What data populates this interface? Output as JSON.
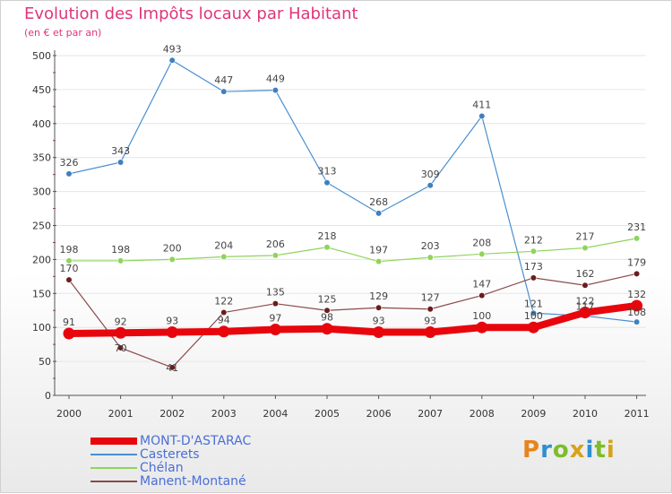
{
  "header": {
    "title": "Evolution des Impôts locaux par Habitant",
    "subtitle": "(en € et par an)"
  },
  "brand": {
    "letters": [
      "P",
      "r",
      "o",
      "x",
      "i",
      "t",
      "i"
    ],
    "colors": [
      "#e8841c",
      "#2f8fd0",
      "#7cbd2a",
      "#d6a21a",
      "#2f8fd0",
      "#7cbd2a",
      "#d6a21a"
    ]
  },
  "colors": {
    "axis": "#555555",
    "grid": "#e6e6e6",
    "tick_label": "#333333",
    "data_label": "#444444"
  },
  "chart_data": {
    "type": "line",
    "title": "Evolution des Impôts locaux par Habitant",
    "subtitle": "(en € et par an)",
    "xlabel": "",
    "ylabel": "",
    "categories": [
      "2000",
      "2001",
      "2002",
      "2003",
      "2004",
      "2005",
      "2006",
      "2007",
      "2008",
      "2009",
      "2010",
      "2011"
    ],
    "ylim": [
      0,
      500
    ],
    "yticks": [
      0,
      50,
      100,
      150,
      200,
      250,
      300,
      350,
      400,
      450,
      500
    ],
    "legend_position": "bottom-left",
    "series": [
      {
        "name": "MONT-D'ASTARAC",
        "color": "#e8060d",
        "values": [
          91,
          92,
          93,
          94,
          97,
          98,
          93,
          93,
          100,
          100,
          122,
          132
        ],
        "labels": [
          "91",
          "92",
          "93",
          "94",
          "97",
          "98",
          "93",
          "93",
          "100",
          "100",
          "122",
          "132"
        ],
        "emphasis": true
      },
      {
        "name": "Casterets",
        "color": "#4a8fd0",
        "marker": "#3f80c0",
        "values": [
          326,
          343,
          493,
          447,
          449,
          313,
          268,
          309,
          411,
          121,
          117,
          108
        ],
        "labels": [
          "326",
          "343",
          "493",
          "447",
          "449",
          "313",
          "268",
          "309",
          "411",
          "121",
          "117",
          "108"
        ]
      },
      {
        "name": "Chélan",
        "color": "#8fd45c",
        "marker": "#8fd45c",
        "values": [
          198,
          198,
          200,
          204,
          206,
          218,
          197,
          203,
          208,
          212,
          217,
          231
        ],
        "labels": [
          "198",
          "198",
          "200",
          "204",
          "206",
          "218",
          "197",
          "203",
          "208",
          "212",
          "217",
          "231"
        ]
      },
      {
        "name": "Manent-Montané",
        "color": "#8b4a4a",
        "marker": "#6b1c1c",
        "values": [
          170,
          70,
          41,
          122,
          135,
          125,
          129,
          127,
          147,
          173,
          162,
          179
        ],
        "labels": [
          "170",
          "70",
          "41",
          "122",
          "135",
          "125",
          "129",
          "127",
          "147",
          "173",
          "162",
          "179"
        ]
      }
    ]
  }
}
